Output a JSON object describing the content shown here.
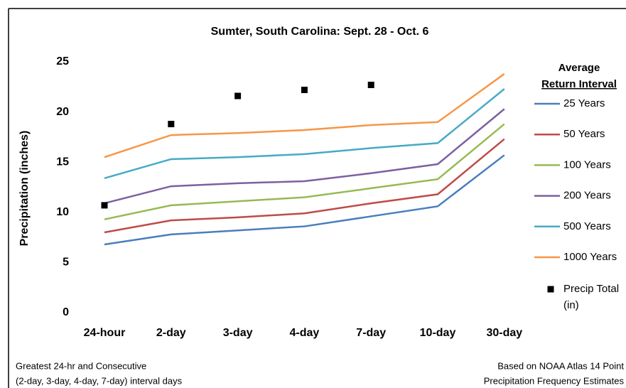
{
  "chart_data": {
    "type": "line",
    "title": "Sumter, South Carolina: Sept. 28 - Oct. 6",
    "ylabel": "Precipitation (inches)",
    "legend_title": [
      "Average",
      "Return Interval"
    ],
    "notes_left": [
      "Greatest 24-hr and Consecutive",
      "(2-day, 3-day, 4-day, 7-day) interval days"
    ],
    "notes_right": [
      "Based on NOAA Atlas 14 Point",
      "Precipitation Frequency Estimates"
    ],
    "categories": [
      "24-hour",
      "2-day",
      "3-day",
      "4-day",
      "7-day",
      "10-day",
      "30-day"
    ],
    "ylim": [
      0,
      25
    ],
    "yticks": [
      0,
      5,
      10,
      15,
      20,
      25
    ],
    "grid": false,
    "legend": "right",
    "series": [
      {
        "name": "25 Years",
        "color": "#4a7ebb",
        "values": [
          6.8,
          7.8,
          8.2,
          8.6,
          9.6,
          10.6,
          15.7
        ]
      },
      {
        "name": "50 Years",
        "color": "#be4b48",
        "values": [
          8.0,
          9.2,
          9.5,
          9.9,
          10.9,
          11.8,
          17.3
        ]
      },
      {
        "name": "100 Years",
        "color": "#98b954",
        "values": [
          9.3,
          10.7,
          11.1,
          11.5,
          12.4,
          13.3,
          18.8
        ]
      },
      {
        "name": "200 Years",
        "color": "#7d60a0",
        "values": [
          10.9,
          12.6,
          12.9,
          13.1,
          13.9,
          14.8,
          20.3
        ]
      },
      {
        "name": "500 Years",
        "color": "#46aac5",
        "values": [
          13.4,
          15.3,
          15.5,
          15.8,
          16.4,
          16.9,
          22.3
        ]
      },
      {
        "name": "1000 Years",
        "color": "#f79646",
        "values": [
          15.5,
          17.7,
          17.9,
          18.2,
          18.7,
          19.0,
          23.8
        ]
      },
      {
        "name": "Precip Total (in)",
        "color": "#000000",
        "marker": "square",
        "values": [
          10.7,
          18.8,
          21.6,
          22.2,
          22.7,
          null,
          null
        ]
      }
    ]
  }
}
